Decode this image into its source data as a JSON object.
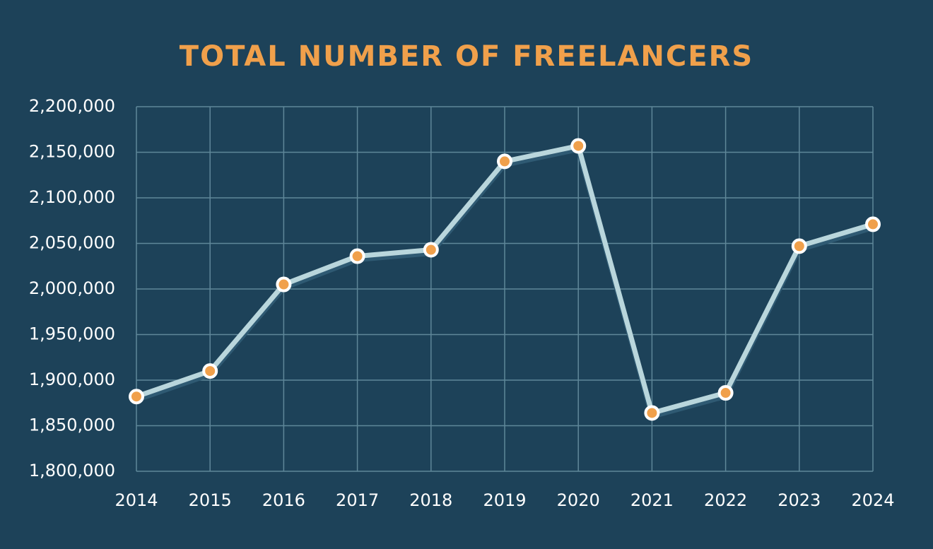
{
  "chart_data": {
    "type": "line",
    "title": "TOTAL NUMBER OF FREELANCERS",
    "categories": [
      "2014",
      "2015",
      "2016",
      "2017",
      "2018",
      "2019",
      "2020",
      "2021",
      "2022",
      "2023",
      "2024"
    ],
    "values": [
      1882000,
      1910000,
      2005000,
      2036000,
      2043000,
      2140000,
      2157000,
      1864000,
      1886000,
      2047000,
      2071000
    ],
    "color": "#b9d6dc",
    "marker_color": "#f0a04b",
    "ylim": [
      1800000,
      2200000
    ],
    "yticks": [
      {
        "value": 1800000,
        "label": "1,800,000"
      },
      {
        "value": 1850000,
        "label": "1,850,000"
      },
      {
        "value": 1900000,
        "label": "1,900,000"
      },
      {
        "value": 1950000,
        "label": "1,950,000"
      },
      {
        "value": 2000000,
        "label": "2,000,000"
      },
      {
        "value": 2050000,
        "label": "2,050,000"
      },
      {
        "value": 2100000,
        "label": "2,100,000"
      },
      {
        "value": 2150000,
        "label": "2,150,000"
      },
      {
        "value": 2200000,
        "label": "2,200,000"
      }
    ],
    "grid": true
  }
}
